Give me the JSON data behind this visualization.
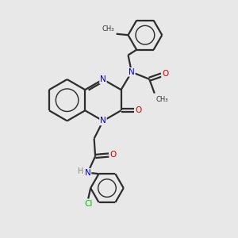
{
  "bg_color": "#e8e8e8",
  "bond_color": "#2d2d2d",
  "N_color": "#0000cc",
  "O_color": "#cc0000",
  "Cl_color": "#00bb00",
  "H_color": "#888888",
  "line_width": 1.6,
  "figsize": [
    3.0,
    3.0
  ],
  "dpi": 100,
  "xlim": [
    0,
    10
  ],
  "ylim": [
    0,
    10
  ]
}
